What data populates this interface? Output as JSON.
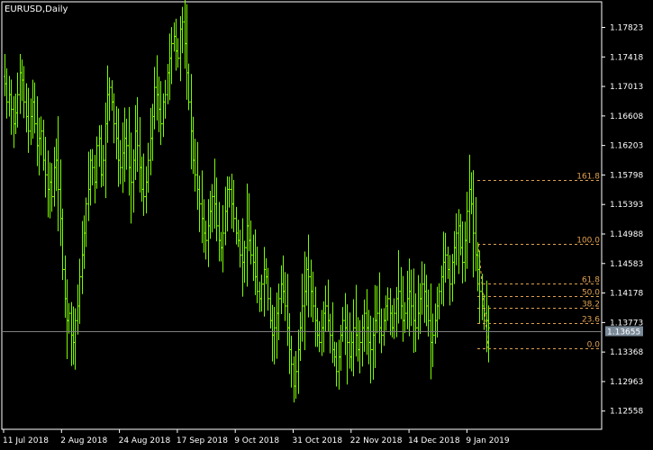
{
  "window": {
    "title": "EURUSD,Daily"
  },
  "colors": {
    "background": "#000000",
    "candle": "#7CFC00",
    "frame": "#ffffff",
    "fibonacci": "#E0A050",
    "bid_line": "#808080",
    "price_label_bg": "#7a8a99"
  },
  "chart_data": {
    "type": "ohlc",
    "symbol": "EURUSD",
    "timeframe": "Daily",
    "y_ticks": [
      "1.17823",
      "1.17418",
      "1.17013",
      "1.16608",
      "1.16203",
      "1.15798",
      "1.15393",
      "1.14988",
      "1.14583",
      "1.14178",
      "1.13773",
      "1.13368",
      "1.12963",
      "1.12558"
    ],
    "ylim": [
      1.1232,
      1.1815
    ],
    "x_ticks": [
      "11 Jul 2018",
      "2 Aug 2018",
      "24 Aug 2018",
      "17 Sep 2018",
      "9 Oct 2018",
      "31 Oct 2018",
      "22 Nov 2018",
      "14 Dec 2018",
      "9 Jan 2019"
    ],
    "current_price": "1.13655",
    "fibonacci_levels": [
      {
        "label": "161.8",
        "price": 1.15735
      },
      {
        "label": "100.0",
        "price": 1.1485
      },
      {
        "label": "61.8",
        "price": 1.14305
      },
      {
        "label": "50.0",
        "price": 1.14135
      },
      {
        "label": "38.2",
        "price": 1.1397
      },
      {
        "label": "23.6",
        "price": 1.1376
      },
      {
        "label": "0.0",
        "price": 1.1342
      }
    ],
    "closes": [
      1.1705,
      1.168,
      1.169,
      1.167,
      1.165,
      1.1665,
      1.169,
      1.172,
      1.171,
      1.168,
      1.166,
      1.164,
      1.166,
      1.168,
      1.165,
      1.162,
      1.163,
      1.164,
      1.16,
      1.158,
      1.156,
      1.157,
      1.155,
      1.159,
      1.16,
      1.156,
      1.152,
      1.145,
      1.141,
      1.138,
      1.139,
      1.136,
      1.135,
      1.138,
      1.14,
      1.144,
      1.147,
      1.15,
      1.154,
      1.156,
      1.16,
      1.159,
      1.157,
      1.162,
      1.163,
      1.158,
      1.16,
      1.165,
      1.169,
      1.17,
      1.168,
      1.165,
      1.163,
      1.16,
      1.159,
      1.161,
      1.163,
      1.162,
      1.159,
      1.157,
      1.16,
      1.164,
      1.162,
      1.159,
      1.156,
      1.155,
      1.157,
      1.16,
      1.163,
      1.166,
      1.17,
      1.169,
      1.167,
      1.165,
      1.168,
      1.169,
      1.172,
      1.174,
      1.176,
      1.177,
      1.175,
      1.174,
      1.178,
      1.179,
      1.176,
      1.172,
      1.168,
      1.164,
      1.16,
      1.158,
      1.156,
      1.154,
      1.152,
      1.15,
      1.149,
      1.151,
      1.153,
      1.155,
      1.154,
      1.151,
      1.149,
      1.148,
      1.15,
      1.153,
      1.156,
      1.156,
      1.154,
      1.152,
      1.15,
      1.149,
      1.147,
      1.146,
      1.148,
      1.151,
      1.149,
      1.147,
      1.146,
      1.144,
      1.142,
      1.141,
      1.143,
      1.145,
      1.144,
      1.141,
      1.138,
      1.136,
      1.137,
      1.139,
      1.141,
      1.143,
      1.142,
      1.14,
      1.137,
      1.134,
      1.132,
      1.129,
      1.131,
      1.134,
      1.137,
      1.14,
      1.142,
      1.145,
      1.144,
      1.142,
      1.14,
      1.138,
      1.136,
      1.135,
      1.137,
      1.139,
      1.14,
      1.138,
      1.136,
      1.134,
      1.133,
      1.131,
      1.133,
      1.136,
      1.138,
      1.137,
      1.135,
      1.133,
      1.135,
      1.137,
      1.136,
      1.134,
      1.135,
      1.137,
      1.139,
      1.137,
      1.135,
      1.134,
      1.136,
      1.138,
      1.139,
      1.137,
      1.136,
      1.138,
      1.14,
      1.141,
      1.139,
      1.137,
      1.139,
      1.141,
      1.142,
      1.14,
      1.138,
      1.139,
      1.141,
      1.142,
      1.14,
      1.138,
      1.137,
      1.139,
      1.141,
      1.143,
      1.142,
      1.14,
      1.138,
      1.135,
      1.136,
      1.138,
      1.14,
      1.142,
      1.144,
      1.146,
      1.147,
      1.145,
      1.143,
      1.146,
      1.148,
      1.15,
      1.151,
      1.148,
      1.146,
      1.149,
      1.153,
      1.156,
      1.154,
      1.15,
      1.147,
      1.145,
      1.142,
      1.14,
      1.139,
      1.138,
      1.137
    ]
  }
}
